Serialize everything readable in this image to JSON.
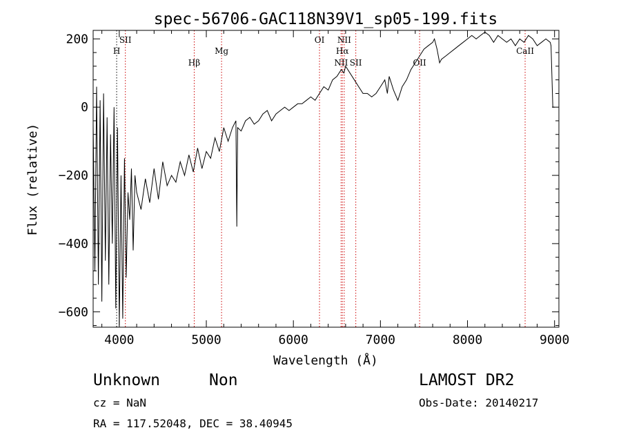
{
  "chart_data": {
    "type": "line",
    "title": "spec-56706-GAC118N39V1_sp05-199.fits",
    "xlabel": "Wavelength (Å)",
    "ylabel": "Flux (relative)",
    "xlim": [
      3700,
      9050
    ],
    "ylim": [
      -645,
      225
    ],
    "x_ticks": [
      4000,
      5000,
      6000,
      7000,
      8000,
      9000
    ],
    "y_ticks": [
      200,
      0,
      -200,
      -400,
      -600
    ],
    "x_tick_labels": [
      "4000",
      "5000",
      "6000",
      "7000",
      "8000",
      "9000"
    ],
    "y_tick_labels": [
      "200",
      "0",
      "−200",
      "−400",
      "−600"
    ],
    "grid": false,
    "series": [
      {
        "color": "#000000",
        "x": [
          3700,
          3720,
          3740,
          3760,
          3780,
          3800,
          3820,
          3840,
          3860,
          3880,
          3900,
          3920,
          3940,
          3960,
          3980,
          4000,
          4020,
          4040,
          4060,
          4080,
          4100,
          4120,
          4140,
          4160,
          4180,
          4200,
          4250,
          4300,
          4350,
          4400,
          4450,
          4500,
          4550,
          4600,
          4650,
          4700,
          4750,
          4800,
          4850,
          4900,
          4950,
          5000,
          5050,
          5100,
          5150,
          5200,
          5250,
          5300,
          5340,
          5350,
          5360,
          5400,
          5450,
          5500,
          5550,
          5600,
          5650,
          5700,
          5750,
          5800,
          5850,
          5900,
          5950,
          6000,
          6050,
          6100,
          6150,
          6200,
          6250,
          6300,
          6350,
          6400,
          6450,
          6500,
          6550,
          6580,
          6600,
          6650,
          6700,
          6750,
          6800,
          6850,
          6900,
          6950,
          7000,
          7050,
          7080,
          7100,
          7150,
          7200,
          7250,
          7300,
          7350,
          7400,
          7450,
          7500,
          7550,
          7600,
          7620,
          7650,
          7680,
          7700,
          7750,
          7800,
          7850,
          7900,
          7950,
          8000,
          8050,
          8100,
          8150,
          8200,
          8250,
          8300,
          8350,
          8400,
          8450,
          8500,
          8550,
          8600,
          8650,
          8700,
          8750,
          8800,
          8850,
          8900,
          8950,
          8960,
          8980,
          9000
        ],
        "y": [
          -50,
          -480,
          60,
          -520,
          20,
          -570,
          40,
          -450,
          -30,
          -520,
          -80,
          -400,
          0,
          -590,
          -60,
          -640,
          -200,
          -620,
          -150,
          -500,
          -250,
          -330,
          -180,
          -420,
          -200,
          -250,
          -300,
          -210,
          -280,
          -180,
          -270,
          -160,
          -230,
          -200,
          -220,
          -160,
          -200,
          -140,
          -190,
          -120,
          -180,
          -130,
          -150,
          -90,
          -130,
          -60,
          -100,
          -60,
          -40,
          -350,
          -60,
          -70,
          -40,
          -30,
          -50,
          -40,
          -20,
          -10,
          -40,
          -20,
          -10,
          0,
          -10,
          0,
          10,
          10,
          20,
          30,
          20,
          40,
          60,
          50,
          80,
          90,
          110,
          100,
          120,
          100,
          80,
          60,
          40,
          40,
          30,
          40,
          60,
          80,
          40,
          90,
          50,
          20,
          60,
          80,
          110,
          130,
          150,
          170,
          180,
          190,
          200,
          170,
          130,
          140,
          150,
          160,
          170,
          180,
          190,
          200,
          210,
          200,
          210,
          220,
          210,
          190,
          210,
          200,
          190,
          200,
          180,
          200,
          190,
          210,
          200,
          180,
          190,
          200,
          190,
          180,
          0,
          0
        ]
      }
    ],
    "annotations": [
      {
        "label": "H",
        "x": 3970,
        "row": 1,
        "line_color": "#000000"
      },
      {
        "label": "SII",
        "x": 4070,
        "row": 0,
        "line_color": "#cc0000"
      },
      {
        "label": "Hβ",
        "x": 4861,
        "row": 2,
        "line_color": "#cc0000"
      },
      {
        "label": "Mg",
        "x": 5175,
        "row": 1,
        "line_color": "#cc0000"
      },
      {
        "label": "OI",
        "x": 6300,
        "row": 0,
        "line_color": "#cc0000"
      },
      {
        "label": "NII",
        "x": 6548,
        "row": 2,
        "line_color": "#cc0000"
      },
      {
        "label": "Hα",
        "x": 6563,
        "row": 1,
        "line_color": "#cc0000"
      },
      {
        "label": "NII",
        "x": 6584,
        "row": 0,
        "line_color": "#cc0000"
      },
      {
        "label": "SII",
        "x": 6717,
        "row": 2,
        "line_color": "#cc0000"
      },
      {
        "label": "OII",
        "x": 7450,
        "row": 2,
        "line_color": "#cc0000"
      },
      {
        "label": "CaII",
        "x": 8662,
        "row": 1,
        "line_color": "#cc0000"
      }
    ]
  },
  "info": {
    "class": "Unknown",
    "subclass": "Non",
    "survey": "LAMOST DR2",
    "cz": "cz = NaN",
    "obs_date": "Obs-Date: 20140217",
    "coords": "RA = 117.52048, DEC =  38.40945"
  }
}
